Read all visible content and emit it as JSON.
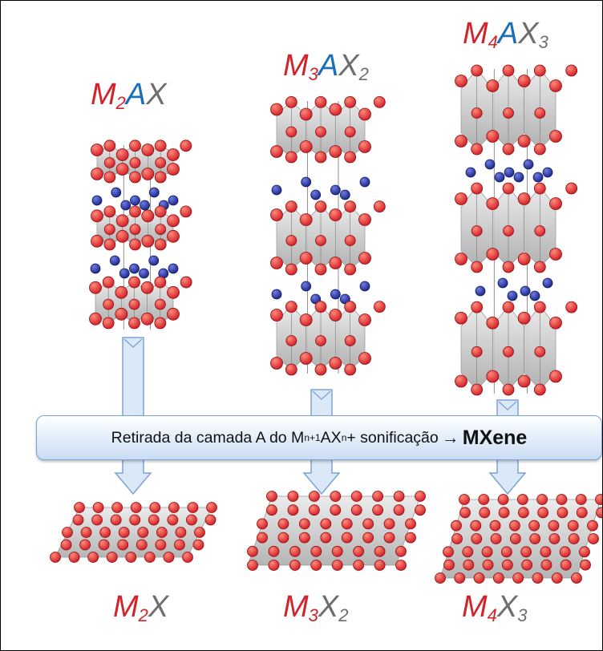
{
  "top_labels": [
    {
      "m": "M",
      "m_sub": "2",
      "a": "A",
      "x": "X",
      "x_sub": ""
    },
    {
      "m": "M",
      "m_sub": "3",
      "a": "A",
      "x": "X",
      "x_sub": "2"
    },
    {
      "m": "M",
      "m_sub": "4",
      "a": "A",
      "x": "X",
      "x_sub": "3"
    }
  ],
  "bottom_labels": [
    {
      "m": "M",
      "m_sub": "2",
      "x": "X",
      "x_sub": ""
    },
    {
      "m": "M",
      "m_sub": "3",
      "x": "X",
      "x_sub": "2"
    },
    {
      "m": "M",
      "m_sub": "4",
      "x": "X",
      "x_sub": "3"
    }
  ],
  "banner": {
    "text_before": "Retirada da camada A do M",
    "sub1": "n+1",
    "text_mid": "AX",
    "sub2": "n",
    "text_after": "  + sonificação",
    "arrow": "→",
    "bold": "MXene"
  },
  "colors": {
    "m_atom": "#d2232a",
    "a_atom": "#1e2a8c",
    "x_label": "#6e6e6e",
    "a_label": "#1c6fb5",
    "octahedron": "#c9c9c9",
    "arrow_fill": "#dbe8f7",
    "arrow_stroke": "#7aa3d6"
  }
}
